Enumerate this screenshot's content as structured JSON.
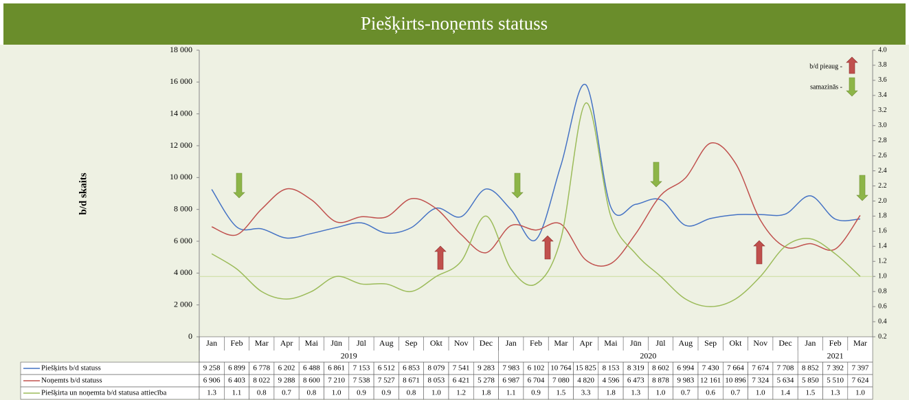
{
  "chart_data": {
    "type": "line",
    "title": "Piešķirts-noņemts statuss",
    "y_label": "b/d skaits",
    "categories": [
      "Jan",
      "Feb",
      "Mar",
      "Apr",
      "Mai",
      "Jūn",
      "Jūl",
      "Aug",
      "Sep",
      "Okt",
      "Nov",
      "Dec",
      "Jan",
      "Feb",
      "Mar",
      "Apr",
      "Mai",
      "Jūn",
      "Jūl",
      "Aug",
      "Sep",
      "Okt",
      "Nov",
      "Dec",
      "Jan",
      "Feb",
      "Mar"
    ],
    "years": [
      "2019",
      "2020",
      "2021"
    ],
    "ylim": [
      0,
      18000
    ],
    "yticks": [
      {
        "value": 0,
        "label": "0"
      },
      {
        "value": 2000,
        "label": "2 000"
      },
      {
        "value": 4000,
        "label": "4 000"
      },
      {
        "value": 6000,
        "label": "6 000"
      },
      {
        "value": 8000,
        "label": "8 000"
      },
      {
        "value": 10000,
        "label": "10 000"
      },
      {
        "value": 12000,
        "label": "12 000"
      },
      {
        "value": 14000,
        "label": "14 000"
      },
      {
        "value": 16000,
        "label": "16 000"
      },
      {
        "value": 18000,
        "label": "18 000"
      }
    ],
    "y2lim": [
      0.2,
      4.0
    ],
    "y2ticks": [
      {
        "value": 0.2,
        "label": "0.2"
      },
      {
        "value": 0.4,
        "label": "0.4"
      },
      {
        "value": 0.6,
        "label": "0.6"
      },
      {
        "value": 0.8,
        "label": "0.8"
      },
      {
        "value": 1.0,
        "label": "1.0"
      },
      {
        "value": 1.2,
        "label": "1.2"
      },
      {
        "value": 1.4,
        "label": "1.4"
      },
      {
        "value": 1.6,
        "label": "1.6"
      },
      {
        "value": 1.8,
        "label": "1.8"
      },
      {
        "value": 2.0,
        "label": "2.0"
      },
      {
        "value": 2.2,
        "label": "2.2"
      },
      {
        "value": 2.4,
        "label": "2.4"
      },
      {
        "value": 2.6,
        "label": "2.6"
      },
      {
        "value": 2.8,
        "label": "2.8"
      },
      {
        "value": 3.0,
        "label": "3.0"
      },
      {
        "value": 3.2,
        "label": "3.2"
      },
      {
        "value": 3.4,
        "label": "3.4"
      },
      {
        "value": 3.6,
        "label": "3.6"
      },
      {
        "value": 3.8,
        "label": "3.8"
      },
      {
        "value": 4.0,
        "label": "4.0"
      }
    ],
    "annotations": [
      "b/d pieaug -",
      "samazinās -"
    ],
    "series": [
      {
        "name": "Piešķirts b/d statuss",
        "color": "#4472c4",
        "values": [
          9258,
          6899,
          6778,
          6202,
          6488,
          6861,
          7153,
          6512,
          6853,
          8079,
          7541,
          9283,
          7983,
          6102,
          10764,
          15825,
          8153,
          8319,
          8602,
          6994,
          7430,
          7664,
          7674,
          7708,
          8852,
          7392,
          7397
        ],
        "value_labels": [
          "9 258",
          "6 899",
          "6 778",
          "6 202",
          "6 488",
          "6 861",
          "7 153",
          "6 512",
          "6 853",
          "8 079",
          "7 541",
          "9 283",
          "7 983",
          "6 102",
          "10 764",
          "15 825",
          "8 153",
          "8 319",
          "8 602",
          "6 994",
          "7 430",
          "7 664",
          "7 674",
          "7 708",
          "8 852",
          "7 392",
          "7 397"
        ]
      },
      {
        "name": "Noņemts b/d statuss",
        "color": "#c0504d",
        "values": [
          6906,
          6403,
          8022,
          9288,
          8600,
          7210,
          7538,
          7527,
          8671,
          8053,
          6421,
          5278,
          6987,
          6704,
          7080,
          4820,
          4596,
          6473,
          8878,
          9983,
          12161,
          10896,
          7324,
          5634,
          5850,
          5510,
          7624
        ],
        "value_labels": [
          "6 906",
          "6 403",
          "8 022",
          "9 288",
          "8 600",
          "7 210",
          "7 538",
          "7 527",
          "8 671",
          "8 053",
          "6 421",
          "5 278",
          "6 987",
          "6 704",
          "7 080",
          "4 820",
          "4 596",
          "6 473",
          "8 878",
          "9 983",
          "12 161",
          "10 896",
          "7 324",
          "5 634",
          "5 850",
          "5 510",
          "7 624"
        ]
      },
      {
        "name": "Piešķirta un noņemta b/d statusa attiecība",
        "color": "#9bbb59",
        "axis": "y2",
        "values": [
          1.3,
          1.1,
          0.8,
          0.7,
          0.8,
          1.0,
          0.9,
          0.9,
          0.8,
          1.0,
          1.2,
          1.8,
          1.1,
          0.9,
          1.5,
          3.3,
          1.8,
          1.3,
          1.0,
          0.7,
          0.6,
          0.7,
          1.0,
          1.4,
          1.5,
          1.3,
          1.0
        ],
        "value_labels": [
          "1.3",
          "1.1",
          "0.8",
          "0.7",
          "0.8",
          "1.0",
          "0.9",
          "0.9",
          "0.8",
          "1.0",
          "1.2",
          "1.8",
          "1.1",
          "0.9",
          "1.5",
          "3.3",
          "1.8",
          "1.3",
          "1.0",
          "0.7",
          "0.6",
          "0.7",
          "1.0",
          "1.4",
          "1.5",
          "1.3",
          "1.0"
        ]
      }
    ]
  }
}
